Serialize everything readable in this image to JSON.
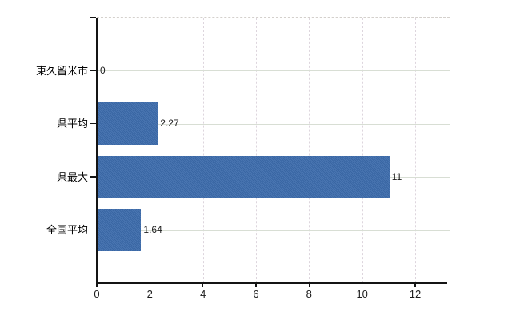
{
  "chart_data": {
    "type": "bar",
    "orientation": "horizontal",
    "title": "",
    "xlabel": "",
    "ylabel": "",
    "categories": [
      "東久留米市",
      "県平均",
      "県最大",
      "全国平均"
    ],
    "values": [
      0,
      2.27,
      11,
      1.64
    ],
    "value_labels": [
      "0",
      "2.27",
      "11",
      "1.64"
    ],
    "x_ticks": [
      0,
      2,
      4,
      6,
      8,
      10,
      12
    ],
    "x_tick_labels": [
      "0",
      "2",
      "4",
      "6",
      "8",
      "10",
      "12"
    ],
    "xlim": [
      0,
      13.2
    ],
    "bar_color": "#3c6cac",
    "axis_color": "#141414",
    "gridline_horizontal_color": "#d8ded4",
    "gridline_vertical_color": "#ddd5dd",
    "grid": "horizontal solid, vertical dashed, top border dashed",
    "legend_position": "none"
  }
}
